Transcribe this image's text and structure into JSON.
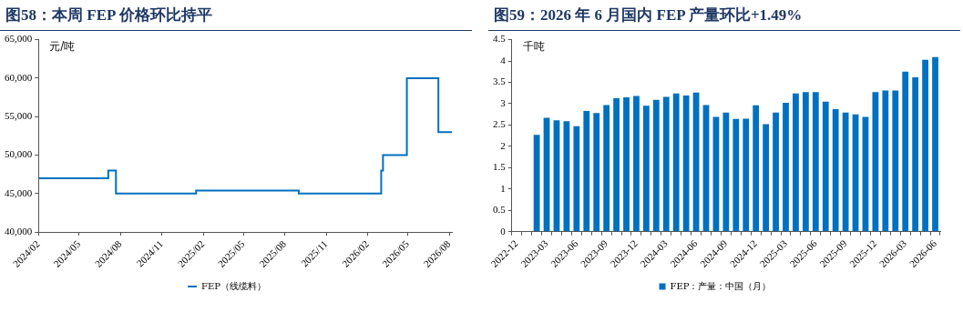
{
  "chart_data": [
    {
      "type": "step",
      "title": "图58：本周 FEP 价格环比持平",
      "ylabel": "元/吨",
      "legend": "bottom",
      "grid": false,
      "marker": "none",
      "x": [
        "2024-02-01",
        "2024-07-05",
        "2024-07-22",
        "2025-01-16",
        "2025-09-01",
        "2026-03-03",
        "2026-03-07",
        "2026-04-29",
        "2026-07-08",
        "2026-08-07"
      ],
      "series": [
        {
          "name": "FEP（线缆料）",
          "color": "#0070c0",
          "values": [
            47000,
            48000,
            45000,
            45400,
            45000,
            48000,
            50000,
            60000,
            53000,
            53000
          ]
        }
      ],
      "xlim": [
        "2024-02-01",
        "2026-08-07"
      ],
      "xticks": [
        {
          "value": "2024-02",
          "label": "2024/02"
        },
        {
          "value": "2024-05",
          "label": "2024/05"
        },
        {
          "value": "2024-08",
          "label": "2024/08"
        },
        {
          "value": "2024-11",
          "label": "2024/11"
        },
        {
          "value": "2025-02",
          "label": "2025/02"
        },
        {
          "value": "2025-05",
          "label": "2025/05"
        },
        {
          "value": "2025-08",
          "label": "2025/08"
        },
        {
          "value": "2025-11",
          "label": "2025/11"
        },
        {
          "value": "2026-02",
          "label": "2026/02"
        },
        {
          "value": "2026-05",
          "label": "2026/05"
        },
        {
          "value": "2026-08",
          "label": "2026/08"
        }
      ],
      "ylim": [
        40000,
        65000
      ],
      "yticks": [
        {
          "value": 40000,
          "label": "40,000"
        },
        {
          "value": 45000,
          "label": "45,000"
        },
        {
          "value": 50000,
          "label": "50,000"
        },
        {
          "value": 55000,
          "label": "55,000"
        },
        {
          "value": 60000,
          "label": "60,000"
        },
        {
          "value": 65000,
          "label": "65,000"
        }
      ]
    },
    {
      "type": "bar",
      "title": "图59：2026 年 6 月国内 FEP 产量环比+1.49%",
      "ylabel": "千吨",
      "legend": "bottom",
      "grid": false,
      "categories": [
        "2022-12",
        null,
        null,
        "2023-03",
        null,
        null,
        "2023-06",
        null,
        null,
        "2023-09",
        null,
        null,
        "2023-12",
        null,
        null,
        "2024-03",
        null,
        null,
        "2024-06",
        null,
        null,
        "2024-09",
        null,
        null,
        "2024-12",
        null,
        null,
        "2025-03",
        null,
        null,
        "2025-06",
        null,
        null,
        "2025-09",
        null,
        null,
        "2025-12",
        null,
        null,
        "2026-03",
        null,
        null,
        "2026-06"
      ],
      "series": [
        {
          "name": "FEP：产量：中国（月）",
          "color": "#0070c0",
          "values": [
            null,
            null,
            2.27,
            2.67,
            2.61,
            2.59,
            2.47,
            2.83,
            2.78,
            2.97,
            3.13,
            3.15,
            3.18,
            2.95,
            3.09,
            3.16,
            3.24,
            3.19,
            3.26,
            2.97,
            2.69,
            2.79,
            2.64,
            2.65,
            2.96,
            2.52,
            2.79,
            3.02,
            3.24,
            3.27,
            3.27,
            3.05,
            2.87,
            2.79,
            2.75,
            2.69,
            3.27,
            3.31,
            3.31,
            3.75,
            3.62,
            4.03,
            4.09
          ]
        }
      ],
      "ylim": [
        0,
        4.5
      ],
      "yticks": [
        0,
        0.5,
        1,
        1.5,
        2,
        2.5,
        3,
        3.5,
        4,
        4.5
      ]
    }
  ]
}
